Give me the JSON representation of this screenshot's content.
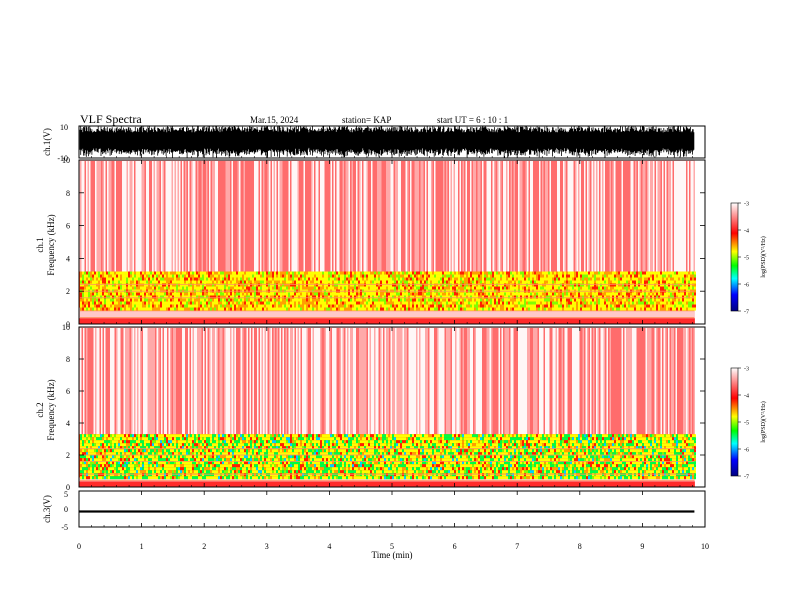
{
  "header": {
    "title": "VLF Spectra",
    "date": "Mar.15, 2024",
    "station": "station= KAP",
    "start": "start UT =  6 : 10 : 1"
  },
  "chart_data": [
    {
      "type": "line",
      "panel": "ch1-waveform",
      "ylabel": "ch.1(V)",
      "ylim": [
        -10,
        10
      ],
      "yticks": [
        "10",
        "-10"
      ],
      "x_range_min": [
        0,
        9.83
      ],
      "note": "dense waveform filling most of the range"
    },
    {
      "type": "heatmap",
      "panel": "ch1-spectrogram",
      "ylabel_line1": "ch.1",
      "ylabel_line2": "Frequency (kHz)",
      "ylim": [
        0,
        10
      ],
      "yticks": [
        "0",
        "2",
        "4",
        "6",
        "8",
        "10"
      ],
      "band_khz": [
        1.0,
        3.2
      ],
      "colorbar": {
        "label": "log(PSD)(V²/Hz)",
        "ticks": [
          "-3",
          "-4",
          "-5",
          "-6",
          "-7"
        ],
        "range": [
          -7,
          -3
        ],
        "colors": [
          "#00007f",
          "#0000ff",
          "#00ffff",
          "#00ff00",
          "#ffff00",
          "#ff0000",
          "#ffffff"
        ]
      }
    },
    {
      "type": "heatmap",
      "panel": "ch2-spectrogram",
      "ylabel_line1": "ch.2",
      "ylabel_line2": "Frequency (kHz)",
      "ylim": [
        0,
        10
      ],
      "yticks": [
        "0",
        "2",
        "4",
        "6",
        "8",
        "10"
      ],
      "band_khz": [
        0.6,
        3.3
      ],
      "colorbar": {
        "label": "log(PSD)(V²/Hz)",
        "ticks": [
          "-3",
          "-4",
          "-5",
          "-6",
          "-7"
        ],
        "range": [
          -7,
          -3
        ],
        "colors": [
          "#00007f",
          "#0000ff",
          "#00ffff",
          "#00ff00",
          "#ffff00",
          "#ff0000",
          "#ffffff"
        ]
      }
    },
    {
      "type": "line",
      "panel": "ch3-waveform",
      "ylabel": "ch.3(V)",
      "ylim": [
        -5,
        5
      ],
      "yticks": [
        "5",
        "0",
        "-5"
      ],
      "value_band": [
        -1.0,
        -0.4
      ]
    }
  ],
  "xaxis": {
    "label": "Time (min)",
    "ticks": [
      "0",
      "1",
      "2",
      "3",
      "4",
      "5",
      "6",
      "7",
      "8",
      "9",
      "10"
    ],
    "range": [
      0,
      10
    ]
  }
}
